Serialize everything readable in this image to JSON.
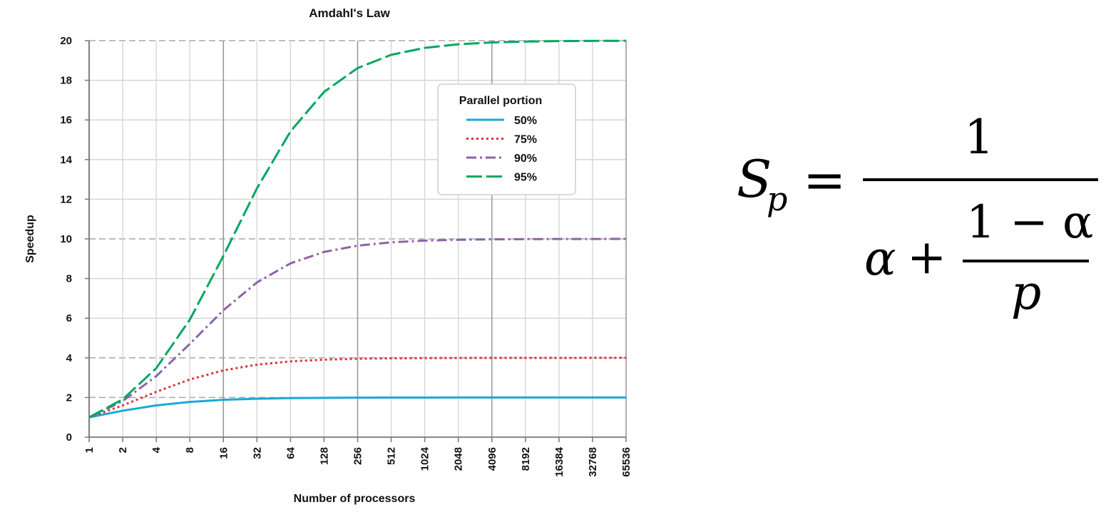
{
  "chart_data": {
    "type": "line",
    "title": "Amdahl's Law",
    "xlabel": "Number of processors",
    "ylabel": "Speedup",
    "x_scale": "log2",
    "x": [
      1,
      2,
      4,
      8,
      16,
      32,
      64,
      128,
      256,
      512,
      1024,
      2048,
      4096,
      8192,
      16384,
      32768,
      65536
    ],
    "x_tick_labels": [
      "1",
      "2",
      "4",
      "8",
      "16",
      "32",
      "64",
      "128",
      "256",
      "512",
      "1024",
      "2048",
      "4096",
      "8192",
      "16384",
      "32768",
      "65536"
    ],
    "ylim": [
      0,
      20
    ],
    "y_ticks": [
      0,
      2,
      4,
      6,
      8,
      10,
      12,
      14,
      16,
      18,
      20
    ],
    "grid": true,
    "legend": {
      "title": "Parallel portion",
      "placement": "top-right"
    },
    "series": [
      {
        "name": "50%",
        "color": "#1aa9d6",
        "style": "solid",
        "values": [
          1,
          1.333,
          1.6,
          1.778,
          1.882,
          1.939,
          1.969,
          1.984,
          1.992,
          1.996,
          1.998,
          1.999,
          2.0,
          2.0,
          2.0,
          2.0,
          2.0
        ]
      },
      {
        "name": "75%",
        "color": "#e0303c",
        "style": "dotted",
        "values": [
          1,
          1.6,
          2.286,
          2.909,
          3.368,
          3.657,
          3.821,
          3.908,
          3.954,
          3.977,
          3.988,
          3.994,
          3.997,
          3.999,
          3.999,
          4.0,
          4.0
        ]
      },
      {
        "name": "90%",
        "color": "#8e62aa",
        "style": "dashdot",
        "values": [
          1,
          1.818,
          3.077,
          4.706,
          6.4,
          7.805,
          8.767,
          9.343,
          9.66,
          9.827,
          9.913,
          9.956,
          9.978,
          9.989,
          9.995,
          9.997,
          9.999
        ]
      },
      {
        "name": "95%",
        "color": "#00a860",
        "style": "dashed",
        "values": [
          1,
          1.905,
          3.478,
          5.926,
          9.143,
          12.549,
          15.422,
          17.415,
          18.618,
          19.284,
          19.636,
          19.817,
          19.908,
          19.954,
          19.977,
          19.988,
          19.994
        ]
      }
    ]
  },
  "formula": {
    "lhs": "S",
    "lhs_sub": "p",
    "equals": "=",
    "numerator": "1",
    "alpha": "α",
    "plus": "+",
    "inner_numerator": "1 − α",
    "inner_denominator": "p"
  }
}
